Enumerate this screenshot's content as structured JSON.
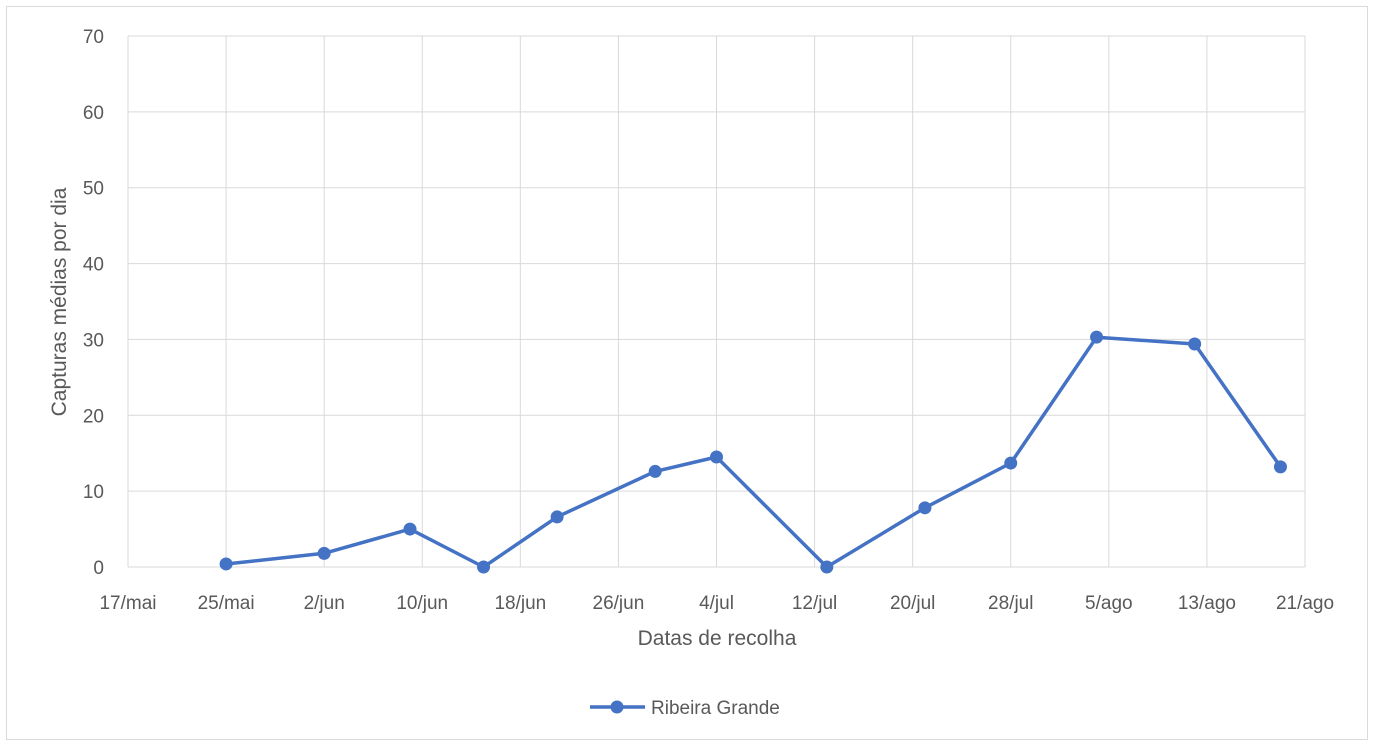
{
  "chart_data": {
    "type": "line",
    "title": "",
    "xlabel": "Datas de recolha",
    "ylabel": "Capturas médias por dia",
    "ylim": [
      0,
      70
    ],
    "y_ticks": [
      "0",
      "10",
      "20",
      "30",
      "40",
      "50",
      "60",
      "70"
    ],
    "xlim": [
      "2023-05-17",
      "2023-08-21"
    ],
    "x_tick_labels": [
      "17/mai",
      "25/mai",
      "2/jun",
      "10/jun",
      "18/jun",
      "26/jun",
      "4/jul",
      "12/jul",
      "20/jul",
      "28/jul",
      "5/ago",
      "13/ago",
      "21/ago"
    ],
    "x_tick_dates": [
      "2023-05-17",
      "2023-05-25",
      "2023-06-02",
      "2023-06-10",
      "2023-06-18",
      "2023-06-26",
      "2023-07-04",
      "2023-07-12",
      "2023-07-20",
      "2023-07-28",
      "2023-08-05",
      "2023-08-13",
      "2023-08-21"
    ],
    "grid": true,
    "legend_position": "bottom",
    "series": [
      {
        "name": "Ribeira Grande",
        "color": "#4472c4",
        "x": [
          "2023-05-25",
          "2023-06-02",
          "2023-06-09",
          "2023-06-15",
          "2023-06-21",
          "2023-06-29",
          "2023-07-04",
          "2023-07-13",
          "2023-07-21",
          "2023-07-28",
          "2023-08-04",
          "2023-08-12",
          "2023-08-19"
        ],
        "y": [
          0.4,
          1.8,
          5.0,
          0.0,
          6.6,
          12.6,
          14.5,
          0.0,
          7.8,
          13.7,
          30.3,
          29.4,
          13.2
        ]
      }
    ]
  }
}
